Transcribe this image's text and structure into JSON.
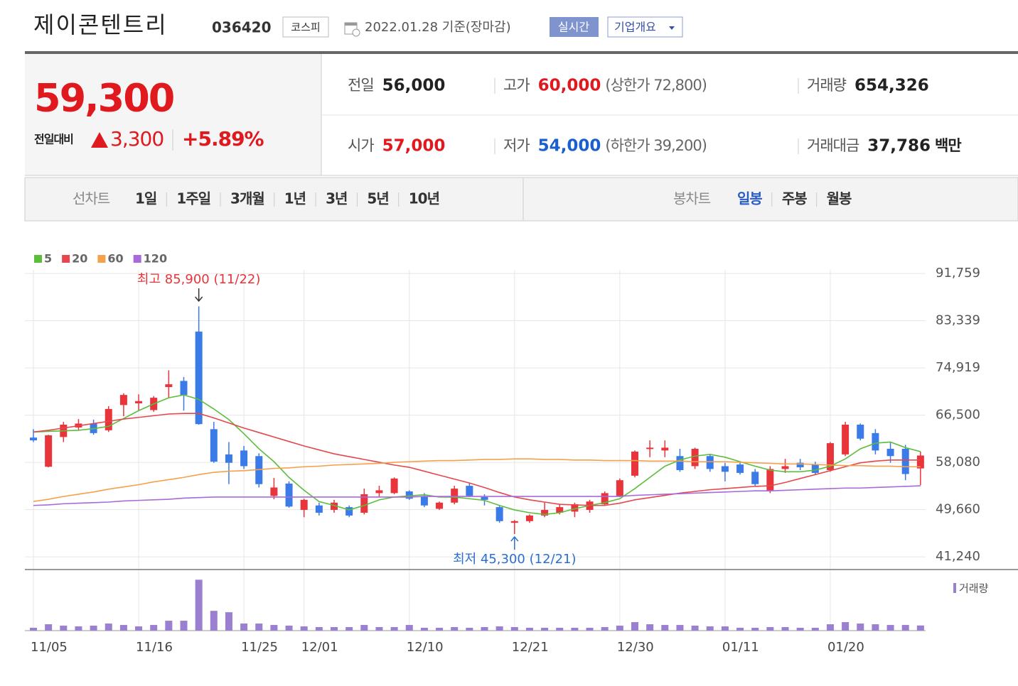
{
  "header": {
    "name": "제이콘텐트리",
    "code": "036420",
    "market": "코스피",
    "date": "2022.01.28 기준(장마감)",
    "buttons": [
      "실시간",
      "기업개요"
    ]
  },
  "price": {
    "current": "59,300",
    "change_label": "전일대비",
    "change": "3,300",
    "change_pct": "+5.89%",
    "color": "#e0191f"
  },
  "quote": {
    "rows": [
      [
        {
          "label": "전일",
          "value": "56,000",
          "color": "#222"
        },
        {
          "label": "고가",
          "value": "60,000",
          "note": "(상한가 72,800)",
          "color": "#e0191f"
        },
        {
          "label": "거래량",
          "value": "654,326",
          "color": "#222"
        }
      ],
      [
        {
          "label": "시가",
          "value": "57,000",
          "color": "#e0191f"
        },
        {
          "label": "저가",
          "value": "54,000",
          "note": "(하한가 39,200)",
          "color": "#1a5fd0"
        },
        {
          "label": "거래대금",
          "value": "37,786",
          "note": "백만",
          "color": "#222"
        }
      ]
    ]
  },
  "tabs": {
    "line_label": "선차트",
    "line": [
      "1일",
      "1주일",
      "3개월",
      "1년",
      "3년",
      "5년",
      "10년"
    ],
    "candle_label": "봉차트",
    "candle": [
      "일봉",
      "주봉",
      "월봉"
    ],
    "candle_active": 0
  },
  "chart_data": {
    "type": "candlestick",
    "categories": [
      "11/05",
      null,
      null,
      null,
      null,
      null,
      null,
      "11/16",
      null,
      null,
      null,
      null,
      null,
      null,
      "11/25",
      null,
      null,
      null,
      "12/01",
      null,
      null,
      null,
      null,
      null,
      null,
      "12/10",
      null,
      null,
      null,
      null,
      null,
      null,
      "12/21",
      null,
      null,
      null,
      null,
      null,
      null,
      "12/30",
      null,
      null,
      null,
      null,
      null,
      null,
      "01/11",
      null,
      null,
      null,
      null,
      null,
      null,
      "01/20",
      null,
      null,
      null,
      null,
      null,
      null
    ],
    "open": [
      62500,
      57300,
      62600,
      64300,
      65000,
      63800,
      68300,
      68600,
      67400,
      71500,
      72600,
      81400,
      64000,
      59500,
      60200,
      59200,
      52100,
      54300,
      49600,
      50400,
      49600,
      50100,
      49100,
      52600,
      52600,
      52900,
      52100,
      49800,
      50900,
      53900,
      51900,
      50100,
      47300,
      47600,
      48600,
      49100,
      49300,
      49600,
      50600,
      52100,
      55700,
      60500,
      60200,
      59200,
      57400,
      59200,
      57400,
      57700,
      56400,
      53100,
      56900,
      58000,
      57700,
      56700,
      59500,
      64800,
      63300,
      60500,
      60500,
      57000
    ],
    "high": [
      64000,
      63000,
      65300,
      65800,
      65700,
      68100,
      70400,
      70200,
      69900,
      74500,
      73300,
      85900,
      65300,
      61700,
      61000,
      59700,
      55300,
      54700,
      51600,
      50900,
      51400,
      50400,
      53400,
      53900,
      55400,
      53100,
      52600,
      51100,
      53900,
      54400,
      52400,
      50400,
      47800,
      48800,
      50900,
      50600,
      50900,
      51400,
      52900,
      55200,
      60200,
      62000,
      62000,
      60500,
      60700,
      59500,
      58000,
      58200,
      56900,
      57400,
      58700,
      58700,
      58200,
      61700,
      65300,
      65000,
      64000,
      61700,
      61200,
      60000
    ],
    "low": [
      61700,
      57200,
      61700,
      63800,
      63000,
      63500,
      66300,
      67400,
      67100,
      69600,
      67300,
      64800,
      58000,
      54200,
      56900,
      53600,
      51500,
      50000,
      48300,
      48600,
      49100,
      48300,
      48800,
      51900,
      52400,
      51400,
      50100,
      49600,
      50600,
      51900,
      50400,
      47300,
      45300,
      47300,
      48300,
      48800,
      48300,
      49100,
      50400,
      51900,
      55400,
      59000,
      59000,
      56400,
      56900,
      56400,
      54700,
      55900,
      53900,
      52600,
      56200,
      56700,
      55900,
      56400,
      59200,
      62000,
      59500,
      58000,
      54900,
      54000
    ],
    "close": [
      62000,
      62900,
      64800,
      65000,
      63300,
      67600,
      70100,
      69000,
      69600,
      72000,
      70100,
      64900,
      58200,
      58000,
      57400,
      54200,
      53600,
      50200,
      51400,
      49100,
      50900,
      48600,
      52400,
      53100,
      55200,
      51600,
      50400,
      50900,
      53400,
      52100,
      51400,
      47600,
      47600,
      48600,
      49600,
      50100,
      50600,
      51100,
      52600,
      54900,
      60000,
      60700,
      60700,
      56700,
      60500,
      56900,
      56400,
      56200,
      54200,
      56900,
      57400,
      57200,
      56200,
      61500,
      64800,
      62300,
      60200,
      59200,
      56000,
      59300
    ],
    "up_color": "#e8343b",
    "down_color": "#3a7be8",
    "moving_averages": [
      {
        "name": "5",
        "color": "#5cbd3c",
        "values": [
          63500,
          63600,
          63700,
          63800,
          64100,
          64500,
          65900,
          67300,
          68500,
          69600,
          70100,
          69300,
          67600,
          65700,
          63200,
          60500,
          58200,
          55400,
          53100,
          51100,
          50400,
          49600,
          50400,
          51400,
          51900,
          52100,
          52300,
          51900,
          51900,
          51600,
          51300,
          50400,
          49600,
          49100,
          48800,
          49100,
          49800,
          50400,
          50900,
          51600,
          53400,
          55400,
          57400,
          58500,
          59200,
          59500,
          59000,
          58200,
          57400,
          56700,
          56400,
          56400,
          56700,
          57400,
          58700,
          60500,
          61500,
          61700,
          60700,
          60000
        ]
      },
      {
        "name": "20",
        "color": "#e5474c",
        "values": [
          63500,
          63800,
          64200,
          64600,
          65000,
          65400,
          65800,
          66100,
          66400,
          66700,
          66800,
          66800,
          66000,
          65100,
          64200,
          63400,
          62600,
          61800,
          61000,
          60300,
          59600,
          59100,
          58600,
          58100,
          57600,
          57200,
          56500,
          55800,
          55100,
          54400,
          53600,
          52700,
          51900,
          51400,
          51000,
          50600,
          50500,
          50400,
          50400,
          50800,
          51400,
          51800,
          52200,
          52600,
          52900,
          53200,
          53400,
          53600,
          53800,
          53900,
          54500,
          55200,
          55900,
          56600,
          57300,
          58000,
          58300,
          58500,
          58500,
          58500
        ]
      },
      {
        "name": "60",
        "color": "#f5a04a",
        "values": [
          51100,
          51500,
          52000,
          52400,
          52800,
          53300,
          53700,
          54100,
          54600,
          55000,
          55400,
          55900,
          56300,
          56500,
          56600,
          56800,
          57000,
          57100,
          57300,
          57400,
          57600,
          57700,
          57800,
          57900,
          58100,
          58200,
          58300,
          58400,
          58400,
          58500,
          58600,
          58600,
          58700,
          58700,
          58600,
          58600,
          58500,
          58500,
          58400,
          58400,
          58400,
          58300,
          58300,
          58300,
          58200,
          58200,
          58200,
          58100,
          58000,
          57900,
          57800,
          57800,
          57700,
          57600,
          57500,
          57500,
          57400,
          57400,
          57300,
          57300
        ]
      },
      {
        "name": "120",
        "color": "#a86ad8",
        "values": [
          50400,
          50500,
          50700,
          50800,
          50900,
          51000,
          51200,
          51300,
          51400,
          51500,
          51700,
          51800,
          51900,
          51900,
          51900,
          51900,
          51900,
          51900,
          51900,
          51900,
          51900,
          51900,
          51900,
          51900,
          51900,
          51900,
          52000,
          52000,
          52000,
          52000,
          52000,
          52000,
          52000,
          52000,
          52000,
          52000,
          52000,
          52000,
          52000,
          52000,
          52200,
          52300,
          52400,
          52500,
          52600,
          52700,
          52800,
          52900,
          53000,
          53000,
          53100,
          53200,
          53300,
          53400,
          53500,
          53500,
          53600,
          53700,
          53800,
          53900
        ]
      }
    ],
    "ylim": [
      39100,
      92400
    ],
    "yticks": [
      {
        "value": 41240,
        "label": "41,240"
      },
      {
        "value": 49660,
        "label": "49,660"
      },
      {
        "value": 58080,
        "label": "58,080"
      },
      {
        "value": 66500,
        "label": "66,500"
      },
      {
        "value": 74919,
        "label": "74,919"
      },
      {
        "value": 83339,
        "label": "83,339"
      },
      {
        "value": 91759,
        "label": "91,759"
      }
    ],
    "grid": true,
    "annotations": [
      {
        "text": "최고 85,900 (11/22)",
        "color": "#e8343b"
      },
      {
        "text": "최저 45,300 (12/21)",
        "color": "#2a6fd0"
      }
    ],
    "volume": {
      "name": "거래량",
      "color": "#9b7fd0",
      "ylim": [
        0,
        6600000
      ],
      "values": [
        360000,
        810000,
        630000,
        540000,
        630000,
        900000,
        720000,
        540000,
        720000,
        1260000,
        1260000,
        6480000,
        2520000,
        2340000,
        900000,
        900000,
        720000,
        630000,
        540000,
        450000,
        450000,
        450000,
        720000,
        450000,
        450000,
        720000,
        360000,
        360000,
        450000,
        360000,
        450000,
        540000,
        450000,
        360000,
        360000,
        360000,
        360000,
        360000,
        450000,
        630000,
        1080000,
        810000,
        720000,
        720000,
        630000,
        540000,
        540000,
        360000,
        360000,
        450000,
        450000,
        360000,
        360000,
        810000,
        1080000,
        900000,
        810000,
        720000,
        720000,
        654326
      ]
    }
  }
}
